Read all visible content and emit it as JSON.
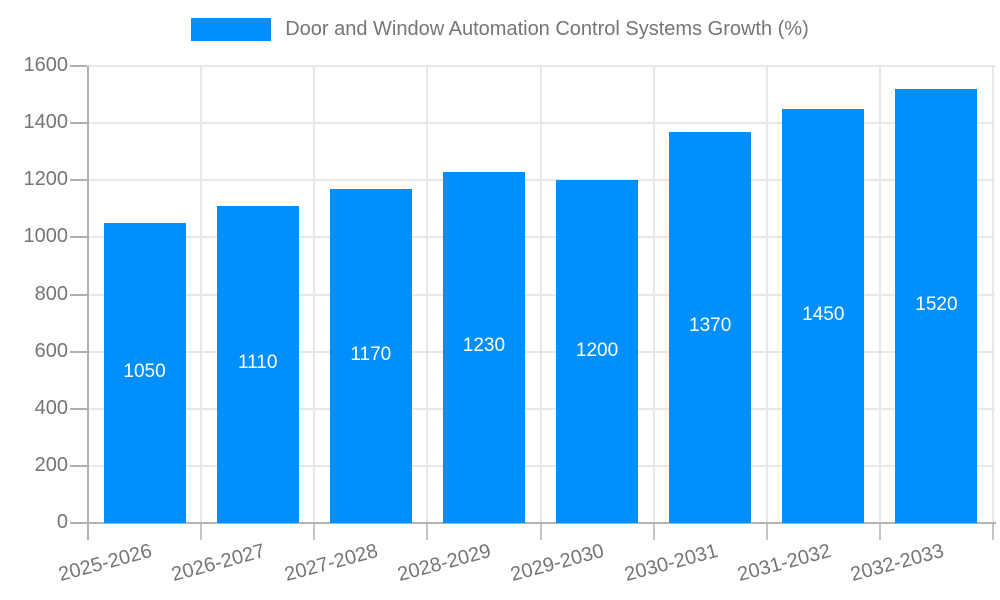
{
  "legend": {
    "series_label": "Door and Window Automation Control Systems Growth (%)"
  },
  "colors": {
    "bar": "#008FFB",
    "axis_text": "#757575",
    "value_label": "#ffffff",
    "gridline": "#e8e8e8",
    "axis_line": "#b3b3b3"
  },
  "chart_data": {
    "type": "bar",
    "title": "Door and Window Automation Control Systems Growth (%)",
    "categories": [
      "2025-2026",
      "2026-2027",
      "2027-2028",
      "2028-2029",
      "2029-2030",
      "2030-2031",
      "2031-2032",
      "2032-2033"
    ],
    "values": [
      1050,
      1110,
      1170,
      1230,
      1200,
      1370,
      1450,
      1520
    ],
    "xlabel": "",
    "ylabel": "",
    "ylim": [
      0,
      1600
    ],
    "ytick_step": 200,
    "yticks": [
      0,
      200,
      400,
      600,
      800,
      1000,
      1200,
      1400,
      1600
    ],
    "grid": "horizontal-and-vertical",
    "legend_position": "top-center",
    "value_labels": "inside-center-white",
    "xlabel_rotation_deg": -15
  }
}
